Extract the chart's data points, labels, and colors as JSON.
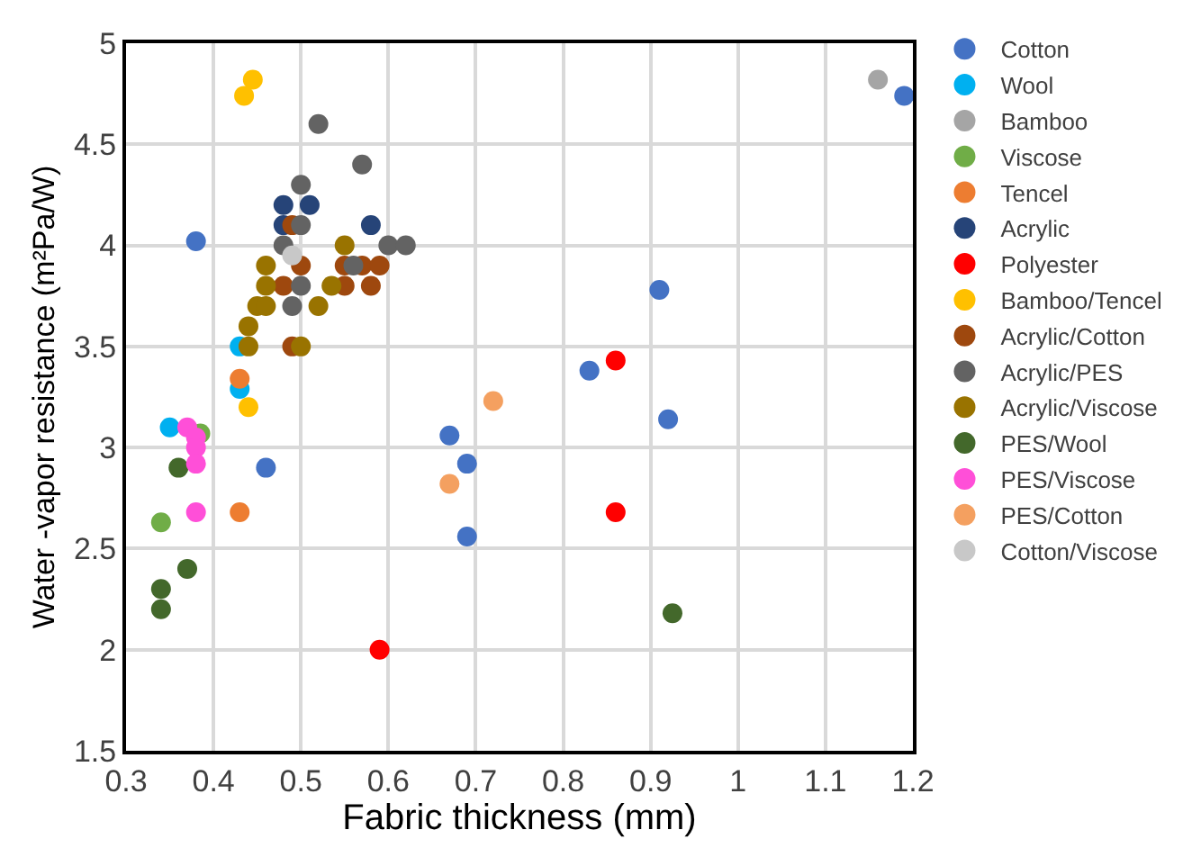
{
  "chart_data": {
    "type": "scatter",
    "xlabel": "Fabric thickness (mm)",
    "ylabel": "Water -vapor resistance (m²Pa/W)",
    "xlim": [
      0.3,
      1.2
    ],
    "xticks": [
      0.3,
      0.4,
      0.5,
      0.6,
      0.7,
      0.8,
      0.9,
      1,
      1.1,
      1.2
    ],
    "ylim": [
      1.5,
      5
    ],
    "yticks": [
      1.5,
      2,
      2.5,
      3,
      3.5,
      4,
      4.5,
      5
    ],
    "grid": true,
    "legend": "right",
    "marker": "circle",
    "series": [
      {
        "name": "Cotton",
        "color": "#4472c4",
        "x": [
          0.38,
          0.46,
          0.67,
          0.69,
          0.69,
          0.83,
          0.91,
          0.92,
          1.19
        ],
        "values": [
          4.02,
          2.9,
          3.06,
          2.92,
          2.56,
          3.38,
          3.78,
          3.14,
          4.74
        ]
      },
      {
        "name": "Wool",
        "color": "#00b0f0",
        "x": [
          0.35,
          0.43,
          0.43
        ],
        "values": [
          3.1,
          3.5,
          3.29
        ]
      },
      {
        "name": "Bamboo",
        "color": "#a5a5a5",
        "x": [
          1.16
        ],
        "values": [
          4.82
        ]
      },
      {
        "name": "Viscose",
        "color": "#70ad47",
        "x": [
          0.34,
          0.385
        ],
        "values": [
          2.63,
          3.07
        ]
      },
      {
        "name": "Tencel",
        "color": "#ed7d31",
        "x": [
          0.43,
          0.43
        ],
        "values": [
          3.34,
          2.68
        ]
      },
      {
        "name": "Acrylic",
        "color": "#264478",
        "x": [
          0.48,
          0.51,
          0.48,
          0.58
        ],
        "values": [
          4.2,
          4.2,
          4.1,
          4.1
        ]
      },
      {
        "name": "Polyester",
        "color": "#ff0000",
        "x": [
          0.59,
          0.86,
          0.86
        ],
        "values": [
          2.0,
          3.43,
          2.68
        ]
      },
      {
        "name": "Bamboo/Tencel",
        "color": "#ffc000",
        "x": [
          0.435,
          0.445,
          0.44
        ],
        "values": [
          4.74,
          4.82,
          3.2
        ]
      },
      {
        "name": "Acrylic/Cotton",
        "color": "#9e480e",
        "x": [
          0.49,
          0.5,
          0.48,
          0.55,
          0.57,
          0.58,
          0.59,
          0.55,
          0.49
        ],
        "values": [
          4.1,
          3.9,
          3.8,
          3.9,
          3.9,
          3.8,
          3.9,
          3.8,
          3.5
        ]
      },
      {
        "name": "Acrylic/PES",
        "color": "#636363",
        "x": [
          0.52,
          0.57,
          0.5,
          0.5,
          0.48,
          0.6,
          0.62,
          0.56,
          0.5,
          0.49
        ],
        "values": [
          4.6,
          4.4,
          4.3,
          4.1,
          4.0,
          4.0,
          4.0,
          3.9,
          3.8,
          3.7
        ]
      },
      {
        "name": "Acrylic/Viscose",
        "color": "#997300",
        "x": [
          0.55,
          0.46,
          0.46,
          0.535,
          0.45,
          0.46,
          0.52,
          0.44,
          0.44,
          0.5
        ],
        "values": [
          4.0,
          3.9,
          3.8,
          3.8,
          3.7,
          3.7,
          3.7,
          3.6,
          3.5,
          3.5
        ]
      },
      {
        "name": "PES/Wool",
        "color": "#43682b",
        "x": [
          0.36,
          0.37,
          0.34,
          0.34,
          0.925
        ],
        "values": [
          2.9,
          2.4,
          2.3,
          2.2,
          2.18
        ]
      },
      {
        "name": "PES/Viscose",
        "color": "#ff4fd8",
        "x": [
          0.37,
          0.38,
          0.38,
          0.38,
          0.38
        ],
        "values": [
          3.1,
          3.05,
          3.0,
          2.92,
          2.68
        ]
      },
      {
        "name": "PES/Cotton",
        "color": "#f4a060",
        "x": [
          0.72,
          0.67
        ],
        "values": [
          3.23,
          2.82
        ]
      },
      {
        "name": "Cotton/Viscose",
        "color": "#c8c8c8",
        "x": [
          0.49
        ],
        "values": [
          3.95
        ]
      }
    ]
  }
}
